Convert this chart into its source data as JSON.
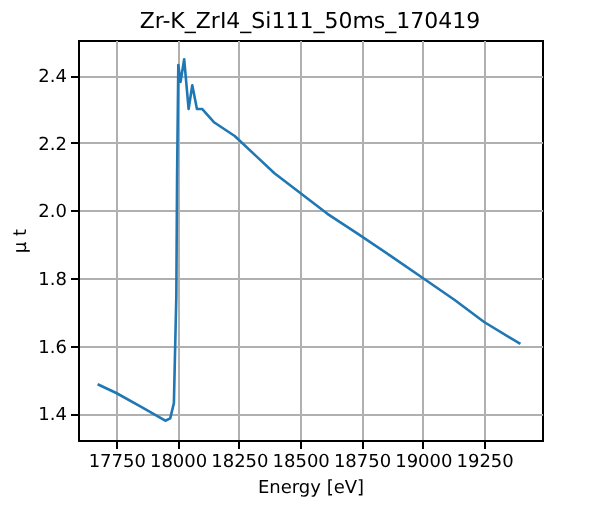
{
  "chart_data": {
    "type": "line",
    "title": "Zr-K_ZrI4_Si111_50ms_170419",
    "xlabel": "Energy [eV]",
    "ylabel": "μ t",
    "x": [
      17674,
      17750,
      17850,
      17950,
      17970,
      17985,
      17995,
      17998,
      18003,
      18012,
      18027,
      18045,
      18060,
      18079,
      18100,
      18150,
      18233,
      18314,
      18395,
      18503,
      18611,
      18737,
      18870,
      19000,
      19130,
      19250,
      19398
    ],
    "series": [
      {
        "color": "#1f77b4",
        "values": [
          1.486,
          1.46,
          1.42,
          1.378,
          1.385,
          1.43,
          1.75,
          2.1,
          2.43,
          2.38,
          2.447,
          2.3,
          2.37,
          2.3,
          2.3,
          2.26,
          2.22,
          2.165,
          2.11,
          2.05,
          1.99,
          1.93,
          1.865,
          1.8,
          1.735,
          1.67,
          1.605
        ]
      }
    ],
    "xlim": [
      17594,
      19486
    ],
    "ylim": [
      1.321,
      2.504
    ],
    "xticks": [
      17750,
      18000,
      18250,
      18500,
      18750,
      19000,
      19250
    ],
    "yticks": [
      1.4,
      1.6,
      1.8,
      {
        "value": 2,
        "label": "2.0"
      },
      2.2,
      2.4
    ],
    "grid": true,
    "line_style": "solid",
    "marker": "none"
  }
}
